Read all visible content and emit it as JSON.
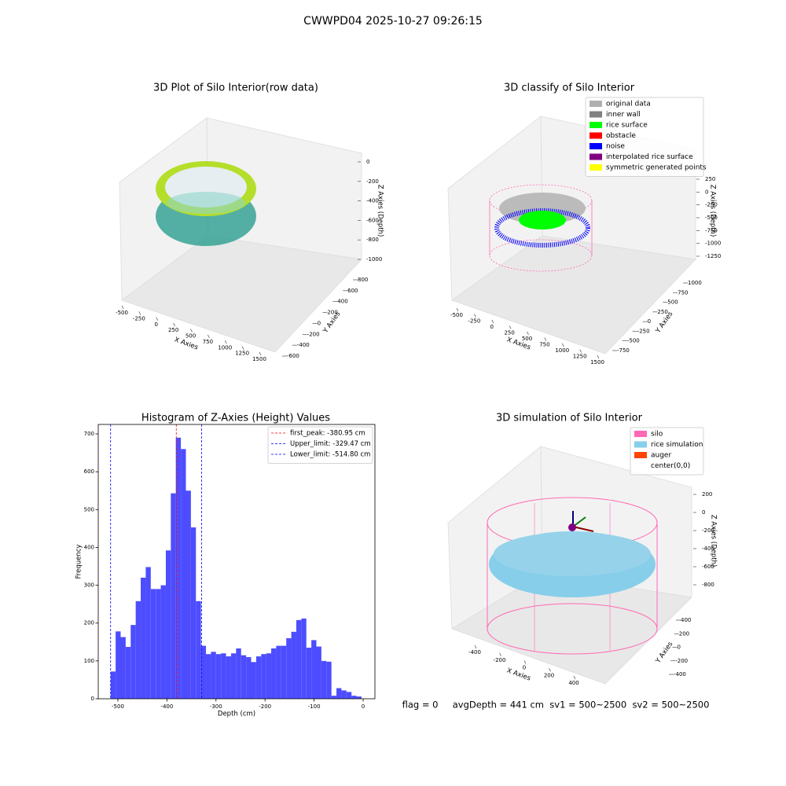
{
  "title": "CWWPD04 2025-10-27 09:26:15",
  "footer": "flag = 0     avgDepth = 441 cm  sv1 = 500~2500  sv2 = 500~2500",
  "chart_data": [
    {
      "type": "scatter3d",
      "title": "3D Plot of Silo Interior(row data)",
      "xlabel": "X Axies",
      "ylabel": "Y Axies",
      "zlabel": "Z Axies (Depth)",
      "xlim": [
        -500,
        1500
      ],
      "xticks": [
        -500,
        -250,
        0,
        250,
        500,
        750,
        1000,
        1250,
        1500
      ],
      "ylim": [
        -600,
        800
      ],
      "yticks": [
        -600,
        -400,
        -200,
        0,
        200,
        400,
        600,
        800
      ],
      "zlim": [
        -1000,
        0
      ],
      "zticks": [
        -1000,
        -800,
        -600,
        -400,
        -200,
        0
      ]
    },
    {
      "type": "scatter3d",
      "title": "3D classify of Silo Interior",
      "xlabel": "X Axies",
      "ylabel": "Y Axies",
      "zlabel": "Z Axies (Depth)",
      "xlim": [
        -500,
        1500
      ],
      "xticks": [
        -500,
        -250,
        0,
        250,
        500,
        750,
        1000,
        1250,
        1500
      ],
      "ylim": [
        -750,
        1000
      ],
      "yticks": [
        -750,
        -500,
        -250,
        0,
        250,
        500,
        750,
        1000
      ],
      "zlim": [
        -1250,
        250
      ],
      "zticks": [
        -1250,
        -1000,
        -750,
        -500,
        -250,
        0,
        250
      ],
      "legend": [
        {
          "name": "original data",
          "color": "#b0b0b0"
        },
        {
          "name": "inner wall",
          "color": "#808080"
        },
        {
          "name": "rice surface",
          "color": "#00ff00"
        },
        {
          "name": "obstacle",
          "color": "#ff0000"
        },
        {
          "name": "noise",
          "color": "#0000ff"
        },
        {
          "name": "interpolated rice surface",
          "color": "#800080"
        },
        {
          "name": "symmetric generated points",
          "color": "#ffff00"
        }
      ]
    },
    {
      "type": "histogram",
      "title": "Histogram of Z-Axies (Height) Values",
      "xlabel": "Depth (cm)",
      "ylabel": "Frequency",
      "color": "#4d4dff",
      "bins": [
        -514.8,
        -504.57,
        -494.34,
        -484.11,
        -473.88,
        -463.65,
        -453.42,
        -443.19,
        -432.96,
        -422.73,
        -412.5,
        -402.27,
        -392.04,
        -381.81,
        -371.58,
        -361.35,
        -351.12,
        -340.89,
        -330.66,
        -320.43,
        -310.2,
        -299.97,
        -289.74,
        -279.51,
        -269.28,
        -259.05,
        -248.82,
        -238.59,
        -228.36,
        -218.13,
        -207.9,
        -197.67,
        -187.44,
        -177.21,
        -166.98,
        -156.75,
        -146.52,
        -136.29,
        -126.06,
        -115.83,
        -105.6,
        -95.37,
        -85.14,
        -74.91,
        -64.68,
        -54.45,
        -44.22,
        -33.99,
        -23.76,
        -13.53,
        -3.3
      ],
      "counts": [
        72,
        178,
        163,
        137,
        195,
        258,
        320,
        348,
        290,
        290,
        300,
        392,
        543,
        690,
        660,
        550,
        453,
        258,
        140,
        118,
        124,
        118,
        120,
        112,
        120,
        133,
        115,
        110,
        97,
        112,
        118,
        120,
        133,
        140,
        140,
        160,
        177,
        208,
        212,
        135,
        155,
        138,
        100,
        98,
        8,
        28,
        22,
        18,
        8,
        6
      ],
      "xlim": [
        -540,
        24
      ],
      "xticks": [
        -500,
        -400,
        -300,
        -200,
        -100,
        0
      ],
      "ylim": [
        0,
        725
      ],
      "yticks": [
        0,
        100,
        200,
        300,
        400,
        500,
        600,
        700
      ],
      "lines": [
        {
          "label": "first_peak: -380.95 cm",
          "value": -380.95,
          "color": "#ff0000"
        },
        {
          "label": "Upper_limit: -329.47 cm",
          "value": -329.47,
          "color": "#0000ff"
        },
        {
          "label": "Lower_limit: -514.80 cm",
          "value": -514.8,
          "color": "#0000ff"
        }
      ]
    },
    {
      "type": "scatter3d",
      "title": "3D simulation of Silo Interior",
      "xlabel": "X Axies",
      "ylabel": "Y Axies",
      "zlabel": "Z Axies (Depth)",
      "xlim": [
        -400,
        400
      ],
      "xticks": [
        -400,
        -200,
        0,
        200,
        400
      ],
      "ylim": [
        -400,
        400
      ],
      "yticks": [
        -400,
        -200,
        0,
        200,
        400
      ],
      "zlim": [
        -800,
        200
      ],
      "zticks": [
        -800,
        -600,
        -400,
        -200,
        0,
        200
      ],
      "legend": [
        {
          "name": "silo",
          "color": "#ff69b4"
        },
        {
          "name": "rice simulation",
          "color": "#87ceeb"
        },
        {
          "name": "auger",
          "color": "#ff4500"
        },
        {
          "name": "center(0,0)",
          "color": "#ffffff"
        }
      ]
    }
  ]
}
